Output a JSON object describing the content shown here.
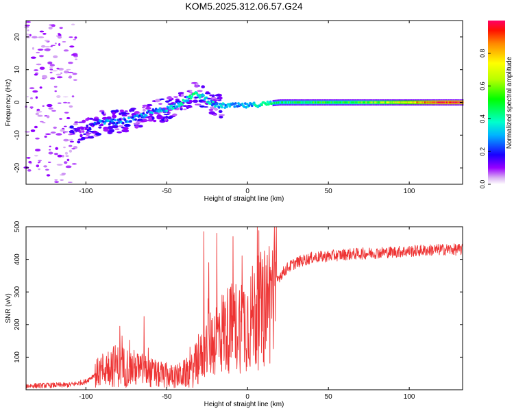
{
  "title": "KOM5.2025.312.06.57.G24",
  "chart_data": [
    {
      "type": "heatmap",
      "name": "spectrogram",
      "xlabel": "Height of straight line (km)",
      "ylabel": "Frequency (Hz)",
      "xlim": [
        -137,
        133
      ],
      "ylim": [
        -25,
        25
      ],
      "xticks": [
        -100,
        -50,
        0,
        50,
        100
      ],
      "yticks": [
        -20,
        -10,
        0,
        10,
        20
      ],
      "colorbar": {
        "label": "Normalized spectral amplitude",
        "range": [
          0,
          1
        ],
        "ticks": [
          "0.0",
          "0.2",
          "0.4",
          "0.6",
          "0.8"
        ],
        "tick_values": [
          0.0,
          0.2,
          0.4,
          0.6,
          0.8
        ]
      },
      "ridge": {
        "x": [
          -137,
          -110,
          -100,
          -90,
          -80,
          -70,
          -60,
          -50,
          -40,
          -33,
          -28,
          -20,
          -10,
          0,
          10,
          20,
          40,
          60,
          80,
          100,
          120,
          133
        ],
        "freq": [
          -10,
          -10,
          -8,
          -6,
          -6,
          -5,
          -3,
          -2,
          0,
          2.5,
          2,
          -1,
          -1,
          -1,
          -0.5,
          0,
          0,
          0,
          0,
          0,
          0,
          0
        ],
        "amplitude": [
          0.05,
          0.08,
          0.15,
          0.25,
          0.25,
          0.25,
          0.25,
          0.3,
          0.35,
          0.4,
          0.35,
          0.3,
          0.3,
          0.3,
          0.35,
          0.45,
          0.5,
          0.5,
          0.6,
          0.75,
          0.95,
          0.95
        ]
      }
    },
    {
      "type": "line",
      "name": "snr",
      "xlabel": "Height of straight line (km)",
      "ylabel": "SNR (v/v)",
      "xlim": [
        -137,
        133
      ],
      "ylim": [
        0,
        500
      ],
      "xticks": [
        -100,
        -50,
        0,
        50,
        100
      ],
      "yticks": [
        100,
        200,
        300,
        400,
        500
      ],
      "color": "#ee3333",
      "trend": {
        "x": [
          -137,
          -110,
          -100,
          -95,
          -85,
          -75,
          -65,
          -55,
          -45,
          -35,
          -30,
          -25,
          -20,
          -15,
          -10,
          -5,
          0,
          5,
          10,
          15,
          20,
          25,
          30,
          40,
          60,
          80,
          100,
          120,
          133
        ],
        "snr": [
          12,
          15,
          25,
          45,
          75,
          70,
          60,
          45,
          40,
          55,
          90,
          130,
          160,
          180,
          190,
          200,
          210,
          230,
          250,
          300,
          350,
          375,
          390,
          405,
          415,
          420,
          425,
          430,
          430
        ]
      },
      "spikes": [
        {
          "x": -27,
          "snr": 485
        },
        {
          "x": -24,
          "snr": 390
        },
        {
          "x": -19,
          "snr": 480
        },
        {
          "x": -9,
          "snr": 470
        },
        {
          "x": 6,
          "snr": 500
        },
        {
          "x": 9,
          "snr": 400
        },
        {
          "x": -79,
          "snr": 195
        },
        {
          "x": -64,
          "snr": 225
        }
      ]
    }
  ]
}
